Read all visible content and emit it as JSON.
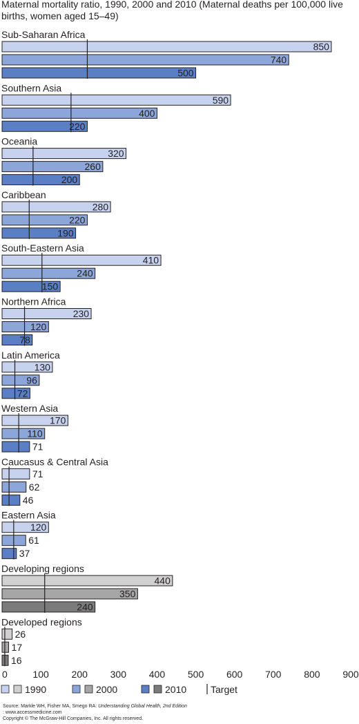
{
  "chart_data": {
    "type": "bar",
    "orientation": "horizontal",
    "title": "Maternal mortality ratio, 1990, 2000 and 2010 (Maternal deaths per 100,000 live births, women aged 15–49)",
    "xlim": [
      0,
      900
    ],
    "xticks": [
      "0",
      "100",
      "200",
      "300",
      "400",
      "500",
      "600",
      "700",
      "800",
      "900"
    ],
    "series_names": [
      "1990",
      "2000",
      "2010"
    ],
    "target_label": "Target",
    "groups": [
      {
        "name": "Sub-Saharan Africa",
        "values": [
          850,
          740,
          500
        ],
        "target": 220,
        "kind": "region"
      },
      {
        "name": "Southern Asia",
        "values": [
          590,
          400,
          220
        ],
        "target": 178,
        "kind": "region"
      },
      {
        "name": "Oceania",
        "values": [
          320,
          260,
          200
        ],
        "target": 80,
        "kind": "region"
      },
      {
        "name": "Caribbean",
        "values": [
          280,
          220,
          190
        ],
        "target": 70,
        "kind": "region"
      },
      {
        "name": "South-Eastern Asia",
        "values": [
          410,
          240,
          150
        ],
        "target": 103,
        "kind": "region"
      },
      {
        "name": "Northern Africa",
        "values": [
          230,
          120,
          78
        ],
        "target": 58,
        "kind": "region"
      },
      {
        "name": "Latin America",
        "values": [
          130,
          96,
          72
        ],
        "target": 33,
        "kind": "region"
      },
      {
        "name": "Western Asia",
        "values": [
          170,
          110,
          71
        ],
        "target": 43,
        "kind": "region"
      },
      {
        "name": "Caucasus & Central Asia",
        "values": [
          71,
          62,
          46
        ],
        "target": 18,
        "kind": "region"
      },
      {
        "name": "Eastern Asia",
        "values": [
          120,
          61,
          37
        ],
        "target": 30,
        "kind": "region"
      },
      {
        "name": "Developing regions",
        "values": [
          440,
          350,
          240
        ],
        "target": 110,
        "kind": "aggregate"
      },
      {
        "name": "Developed regions",
        "values": [
          26,
          17,
          16
        ],
        "target": 7,
        "kind": "aggregate"
      }
    ],
    "colors": {
      "region": [
        "#c7d3ee",
        "#8da6da",
        "#5b7fc4"
      ],
      "aggregate": [
        "#d1d1d1",
        "#a6a6a6",
        "#7b7b7b"
      ],
      "target": "#231f20"
    }
  },
  "source": {
    "prefix": "Source: Markle WH, Fisher MA, Smego RA: ",
    "book": "Understanding Global Health, 2nd Edition",
    "site": ": www.accessmedicine.com",
    "copyright": "Copyright © The McGraw-Hill Companies, Inc. All rights reserved."
  }
}
